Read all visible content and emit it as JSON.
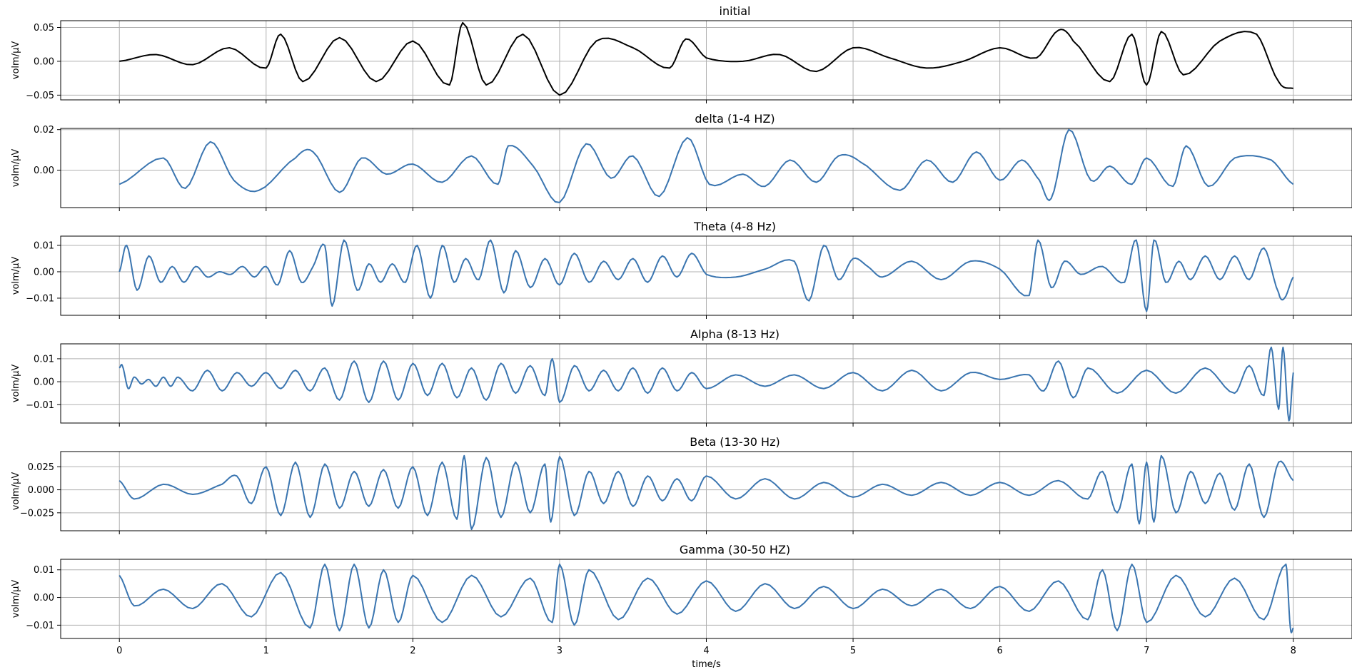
{
  "chart_data": [
    {
      "type": "line",
      "title": "initial",
      "ylabel": "volm/μV",
      "xlabel": "",
      "xlim": [
        -0.4,
        8.4
      ],
      "ylim": [
        -0.057,
        0.06
      ],
      "yticks": [
        -0.05,
        0.0,
        0.05
      ],
      "ytick_labels": [
        "−0.05",
        "0.00",
        "0.05"
      ],
      "xticks": [
        0,
        1,
        2,
        3,
        4,
        5,
        6,
        7,
        8
      ],
      "xtick_labels": [],
      "grid": true,
      "color": "#000000",
      "series": [
        {
          "x": [
            0,
            0.25,
            0.5,
            0.75,
            1,
            1.1,
            1.25,
            1.5,
            1.75,
            2,
            2.25,
            2.34,
            2.5,
            2.75,
            3,
            3.25,
            3.5,
            3.75,
            3.86,
            4,
            4.25,
            4.5,
            4.75,
            5,
            5.25,
            5.5,
            5.75,
            6,
            6.25,
            6.4,
            6.5,
            6.75,
            6.9,
            7,
            7.1,
            7.25,
            7.5,
            7.75,
            7.9,
            8
          ],
          "y": [
            0.0,
            0.01,
            -0.005,
            0.02,
            -0.01,
            0.04,
            -0.03,
            0.035,
            -0.03,
            0.03,
            -0.035,
            0.057,
            -0.035,
            0.04,
            -0.05,
            0.03,
            0.02,
            -0.01,
            0.033,
            0.005,
            0.0,
            0.01,
            -0.015,
            0.02,
            0.005,
            -0.01,
            0.0,
            0.02,
            0.005,
            0.046,
            0.03,
            -0.03,
            0.04,
            -0.035,
            0.044,
            -0.02,
            0.03,
            0.04,
            -0.03,
            -0.04
          ]
        }
      ]
    },
    {
      "type": "line",
      "title": "delta (1-4 HZ)",
      "ylabel": "volm/μV",
      "xlabel": "",
      "xlim": [
        -0.4,
        8.4
      ],
      "ylim": [
        -0.0185,
        0.0206
      ],
      "yticks": [
        0.0,
        0.02
      ],
      "ytick_labels": [
        "0.00",
        "0.02"
      ],
      "xticks": [
        0,
        1,
        2,
        3,
        4,
        5,
        6,
        7,
        8
      ],
      "xtick_labels": [],
      "grid": true,
      "color": "#3a75b0",
      "series": [
        {
          "x": [
            0,
            0.3,
            0.45,
            0.62,
            0.78,
            0.95,
            1.2,
            1.32,
            1.5,
            1.65,
            1.82,
            2.0,
            2.2,
            2.4,
            2.58,
            2.65,
            2.82,
            3.0,
            3.18,
            3.35,
            3.5,
            3.68,
            3.87,
            4.02,
            4.25,
            4.4,
            4.57,
            4.75,
            4.9,
            5.05,
            5.32,
            5.5,
            5.68,
            5.84,
            6.0,
            6.15,
            6.27,
            6.35,
            6.47,
            6.62,
            6.75,
            6.9,
            7.0,
            7.18,
            7.27,
            7.42,
            7.6,
            7.85,
            8.0
          ],
          "y": [
            -0.007,
            0.006,
            -0.009,
            0.014,
            -0.005,
            -0.01,
            0.006,
            0.009,
            -0.011,
            0.006,
            -0.002,
            0.003,
            -0.006,
            0.007,
            -0.007,
            0.012,
            0.002,
            -0.016,
            0.013,
            -0.004,
            0.007,
            -0.013,
            0.016,
            -0.007,
            -0.002,
            -0.008,
            0.005,
            -0.006,
            0.007,
            0.004,
            -0.01,
            0.005,
            -0.006,
            0.009,
            -0.005,
            0.005,
            -0.005,
            -0.014,
            0.02,
            -0.005,
            0.002,
            -0.007,
            0.006,
            -0.008,
            0.012,
            -0.008,
            0.006,
            0.005,
            -0.007
          ]
        }
      ]
    },
    {
      "type": "line",
      "title": "Theta (4-8 Hz)",
      "ylabel": "volm/μV",
      "xlabel": "",
      "xlim": [
        -0.4,
        8.4
      ],
      "ylim": [
        -0.0165,
        0.0135
      ],
      "yticks": [
        -0.01,
        0.0,
        0.01
      ],
      "ytick_labels": [
        "−0.01",
        "0.00",
        "0.01"
      ],
      "xticks": [
        0,
        1,
        2,
        3,
        4,
        5,
        6,
        7,
        8
      ],
      "xtick_labels": [],
      "grid": true,
      "color": "#3a75b0",
      "series": [
        {
          "x": [
            0,
            0.05,
            0.12,
            0.2,
            0.28,
            0.36,
            0.44,
            0.52,
            0.6,
            0.68,
            0.76,
            0.84,
            0.92,
            1.0,
            1.08,
            1.16,
            1.24,
            1.32,
            1.4,
            1.45,
            1.53,
            1.62,
            1.7,
            1.78,
            1.86,
            1.95,
            2.03,
            2.12,
            2.2,
            2.28,
            2.36,
            2.45,
            2.53,
            2.62,
            2.7,
            2.8,
            2.9,
            3.0,
            3.1,
            3.2,
            3.3,
            3.4,
            3.5,
            3.6,
            3.7,
            3.8,
            3.9,
            4.0,
            4.2,
            4.4,
            4.6,
            4.7,
            4.8,
            4.9,
            5.0,
            5.1,
            5.2,
            5.4,
            5.6,
            5.8,
            6.0,
            6.2,
            6.26,
            6.35,
            6.44,
            6.55,
            6.7,
            6.85,
            6.93,
            7.0,
            7.05,
            7.13,
            7.22,
            7.3,
            7.4,
            7.5,
            7.6,
            7.7,
            7.8,
            7.9,
            7.94,
            8.0
          ],
          "y": [
            0.0,
            0.01,
            -0.007,
            0.006,
            -0.004,
            0.002,
            -0.004,
            0.002,
            -0.002,
            0.0,
            -0.001,
            0.002,
            -0.002,
            0.002,
            -0.005,
            0.008,
            -0.004,
            0.002,
            0.01,
            -0.013,
            0.012,
            -0.007,
            0.003,
            -0.004,
            0.003,
            -0.004,
            0.01,
            -0.01,
            0.01,
            -0.004,
            0.005,
            -0.003,
            0.012,
            -0.008,
            0.008,
            -0.006,
            0.005,
            -0.005,
            0.007,
            -0.004,
            0.004,
            -0.003,
            0.005,
            -0.004,
            0.006,
            -0.002,
            0.007,
            -0.001,
            -0.002,
            0.001,
            0.004,
            -0.011,
            0.01,
            -0.003,
            0.005,
            0.002,
            -0.002,
            0.004,
            -0.003,
            0.004,
            0.001,
            -0.009,
            0.012,
            -0.006,
            0.004,
            -0.001,
            0.002,
            -0.004,
            0.012,
            -0.015,
            0.012,
            -0.004,
            0.004,
            -0.003,
            0.006,
            -0.003,
            0.006,
            -0.003,
            0.009,
            -0.008,
            -0.01,
            -0.002
          ]
        }
      ]
    },
    {
      "type": "line",
      "title": "Alpha (8-13 Hz)",
      "ylabel": "volm/μV",
      "xlabel": "",
      "xlim": [
        -0.4,
        8.4
      ],
      "ylim": [
        -0.018,
        0.0165
      ],
      "yticks": [
        -0.01,
        0.0,
        0.01
      ],
      "ytick_labels": [
        "−0.01",
        "0.00",
        "0.01"
      ],
      "xticks": [
        0,
        1,
        2,
        3,
        4,
        5,
        6,
        7,
        8
      ],
      "xtick_labels": [],
      "grid": true,
      "color": "#3a75b0",
      "series": [
        {
          "x": [
            0,
            0.02,
            0.06,
            0.1,
            0.15,
            0.2,
            0.25,
            0.3,
            0.35,
            0.4,
            0.5,
            0.6,
            0.7,
            0.8,
            0.9,
            1.0,
            1.1,
            1.2,
            1.3,
            1.4,
            1.5,
            1.6,
            1.7,
            1.8,
            1.9,
            2.0,
            2.1,
            2.2,
            2.3,
            2.4,
            2.5,
            2.6,
            2.7,
            2.8,
            2.9,
            2.95,
            3.0,
            3.1,
            3.2,
            3.3,
            3.4,
            3.5,
            3.6,
            3.7,
            3.8,
            3.9,
            4.0,
            4.2,
            4.4,
            4.6,
            4.8,
            5.0,
            5.2,
            5.4,
            5.6,
            5.8,
            6.0,
            6.2,
            6.3,
            6.4,
            6.5,
            6.6,
            6.8,
            7.0,
            7.2,
            7.4,
            7.6,
            7.7,
            7.8,
            7.85,
            7.9,
            7.93,
            7.97,
            8.0
          ],
          "y": [
            0.006,
            0.007,
            -0.003,
            0.002,
            -0.001,
            0.001,
            -0.002,
            0.002,
            -0.002,
            0.002,
            -0.004,
            0.005,
            -0.004,
            0.004,
            -0.002,
            0.004,
            -0.003,
            0.005,
            -0.004,
            0.006,
            -0.008,
            0.009,
            -0.009,
            0.009,
            -0.008,
            0.008,
            -0.006,
            0.008,
            -0.007,
            0.006,
            -0.008,
            0.008,
            -0.005,
            0.007,
            -0.006,
            0.01,
            -0.009,
            0.007,
            -0.004,
            0.005,
            -0.004,
            0.006,
            -0.005,
            0.006,
            -0.004,
            0.004,
            -0.003,
            0.003,
            -0.002,
            0.003,
            -0.003,
            0.004,
            -0.004,
            0.005,
            -0.004,
            0.004,
            0.001,
            0.003,
            -0.004,
            0.009,
            -0.007,
            0.006,
            -0.005,
            0.005,
            -0.005,
            0.006,
            -0.005,
            0.007,
            -0.006,
            0.015,
            -0.012,
            0.015,
            -0.017,
            0.004
          ]
        }
      ]
    },
    {
      "type": "line",
      "title": "Beta (13-30 Hz)",
      "ylabel": "volm/μV",
      "xlabel": "",
      "xlim": [
        -0.4,
        8.4
      ],
      "ylim": [
        -0.0445,
        0.0415
      ],
      "yticks": [
        -0.025,
        0.0,
        0.025
      ],
      "ytick_labels": [
        "−0.025",
        "0.000",
        "0.025"
      ],
      "xticks": [
        0,
        1,
        2,
        3,
        4,
        5,
        6,
        7,
        8
      ],
      "xtick_labels": [],
      "grid": true,
      "color": "#3a75b0",
      "series": [
        {
          "x": [
            0,
            0.1,
            0.3,
            0.5,
            0.7,
            0.8,
            0.9,
            1.0,
            1.1,
            1.2,
            1.3,
            1.4,
            1.5,
            1.6,
            1.7,
            1.8,
            1.9,
            2.0,
            2.1,
            2.2,
            2.3,
            2.35,
            2.4,
            2.5,
            2.6,
            2.7,
            2.8,
            2.9,
            2.94,
            3.0,
            3.1,
            3.2,
            3.3,
            3.4,
            3.5,
            3.6,
            3.7,
            3.8,
            3.9,
            4.0,
            4.2,
            4.4,
            4.6,
            4.8,
            5.0,
            5.2,
            5.4,
            5.6,
            5.8,
            6.0,
            6.2,
            6.4,
            6.6,
            6.7,
            6.8,
            6.9,
            6.95,
            7.0,
            7.05,
            7.1,
            7.2,
            7.3,
            7.4,
            7.5,
            7.6,
            7.7,
            7.8,
            7.9,
            8.0
          ],
          "y": [
            0.01,
            -0.01,
            0.006,
            -0.005,
            0.006,
            0.015,
            -0.015,
            0.025,
            -0.028,
            0.03,
            -0.03,
            0.028,
            -0.02,
            0.02,
            -0.018,
            0.022,
            -0.02,
            0.025,
            -0.028,
            0.03,
            -0.032,
            0.037,
            -0.043,
            0.035,
            -0.03,
            0.03,
            -0.025,
            0.028,
            -0.035,
            0.036,
            -0.028,
            0.02,
            -0.015,
            0.02,
            -0.018,
            0.015,
            -0.012,
            0.012,
            -0.012,
            0.015,
            -0.01,
            0.012,
            -0.01,
            0.008,
            -0.008,
            0.006,
            -0.006,
            0.008,
            -0.006,
            0.008,
            -0.006,
            0.01,
            -0.01,
            0.02,
            -0.025,
            0.028,
            -0.037,
            0.03,
            -0.035,
            0.037,
            -0.025,
            0.02,
            -0.015,
            0.018,
            -0.022,
            0.028,
            -0.03,
            0.03,
            0.01
          ]
        }
      ]
    },
    {
      "type": "line",
      "title": "Gamma (30-50 HZ)",
      "ylabel": "volm/μV",
      "xlabel": "time/s",
      "xlim": [
        -0.4,
        8.4
      ],
      "ylim": [
        -0.0148,
        0.0138
      ],
      "yticks": [
        -0.01,
        0.0,
        0.01
      ],
      "ytick_labels": [
        "−0.01",
        "0.00",
        "0.01"
      ],
      "xticks": [
        0,
        1,
        2,
        3,
        4,
        5,
        6,
        7,
        8
      ],
      "xtick_labels": [
        "0",
        "1",
        "2",
        "3",
        "4",
        "5",
        "6",
        "7",
        "8"
      ],
      "grid": true,
      "color": "#3a75b0",
      "series": [
        {
          "x": [
            0,
            0.1,
            0.3,
            0.5,
            0.7,
            0.9,
            1.1,
            1.3,
            1.4,
            1.5,
            1.6,
            1.7,
            1.8,
            1.9,
            2.0,
            2.2,
            2.4,
            2.6,
            2.8,
            2.95,
            3.0,
            3.1,
            3.2,
            3.4,
            3.6,
            3.8,
            4.0,
            4.2,
            4.4,
            4.6,
            4.8,
            5.0,
            5.2,
            5.4,
            5.6,
            5.8,
            6.0,
            6.2,
            6.4,
            6.6,
            6.7,
            6.8,
            6.9,
            7.0,
            7.2,
            7.4,
            7.6,
            7.8,
            7.95,
            7.98,
            8.0
          ],
          "y": [
            0.008,
            -0.003,
            0.003,
            -0.004,
            0.005,
            -0.007,
            0.009,
            -0.011,
            0.012,
            -0.012,
            0.012,
            -0.011,
            0.01,
            -0.009,
            0.008,
            -0.009,
            0.008,
            -0.007,
            0.007,
            -0.009,
            0.012,
            -0.01,
            0.01,
            -0.008,
            0.007,
            -0.006,
            0.006,
            -0.005,
            0.005,
            -0.004,
            0.004,
            -0.004,
            0.003,
            -0.003,
            0.003,
            -0.004,
            0.004,
            -0.005,
            0.006,
            -0.008,
            0.01,
            -0.012,
            0.012,
            -0.009,
            0.008,
            -0.007,
            0.007,
            -0.008,
            0.012,
            -0.011,
            -0.011
          ]
        }
      ]
    }
  ]
}
